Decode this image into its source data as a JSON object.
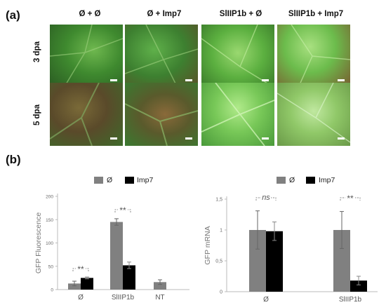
{
  "panel_a": {
    "label": "(a)",
    "columns": [
      "Ø + Ø",
      "Ø + Imp7",
      "SlIIP1b + Ø",
      "SlIIP1b + Imp7"
    ],
    "rows": [
      "3 dpa",
      "5 dpa"
    ],
    "image_icon": "leaf-fluorescence-photo"
  },
  "panel_b": {
    "label": "(b)"
  },
  "colors": {
    "grey": "#808080",
    "black": "#000000",
    "sig": "#8a8a8a"
  },
  "chart_data": [
    {
      "type": "bar",
      "categories": [
        "Ø",
        "SlIIP1b",
        "NT"
      ],
      "series": [
        {
          "name": "Ø",
          "values": [
            13,
            145,
            16
          ],
          "errors": [
            5,
            7,
            5
          ]
        },
        {
          "name": "Imp7",
          "values": [
            25,
            52,
            null
          ],
          "errors": [
            2,
            7,
            null
          ]
        }
      ],
      "legend": [
        "Ø",
        "Imp7"
      ],
      "ylabel": "GFP Fluorescence",
      "xlabel": "",
      "yticks": [
        "0",
        "50",
        "100",
        "150",
        "200"
      ],
      "ylim": [
        0,
        200
      ],
      "significance": [
        {
          "category": "Ø",
          "label": "**"
        },
        {
          "category": "SlIIP1b",
          "label": "**"
        }
      ]
    },
    {
      "type": "bar",
      "categories": [
        "Ø",
        "SlIIP1b"
      ],
      "series": [
        {
          "name": "Ø",
          "values": [
            1.0,
            1.0
          ],
          "errors": [
            0.31,
            0.3
          ]
        },
        {
          "name": "Imp7",
          "values": [
            0.98,
            0.18
          ],
          "errors": [
            0.15,
            0.07
          ]
        }
      ],
      "legend": [
        "Ø",
        "Imp7"
      ],
      "ylabel": "GFP mRNA",
      "xlabel": "",
      "yticks": [
        "0",
        "0,5",
        "1",
        "1,5"
      ],
      "ylim": [
        0,
        1.5
      ],
      "significance": [
        {
          "category": "Ø",
          "label": "ns"
        },
        {
          "category": "SlIIP1b",
          "label": "**"
        }
      ]
    }
  ]
}
